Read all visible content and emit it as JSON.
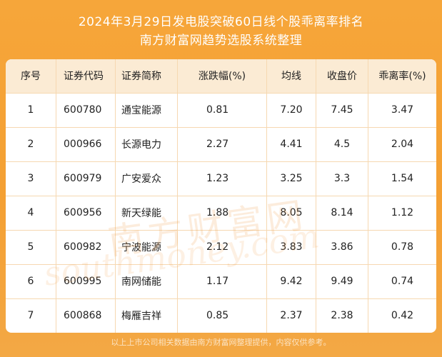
{
  "header": {
    "title_line1": "2024年3月29日发电股突破60日线个股乖离率排名",
    "title_line2": "南方财富网趋势选股系统整理"
  },
  "table": {
    "columns": [
      "序号",
      "证券代码",
      "证券简称",
      "涨跌幅(%)",
      "均线",
      "收盘价",
      "乖离率(%)"
    ],
    "rows": [
      [
        "1",
        "600780",
        "通宝能源",
        "0.81",
        "7.20",
        "7.45",
        "3.47"
      ],
      [
        "2",
        "000966",
        "长源电力",
        "2.27",
        "4.41",
        "4.5",
        "2.04"
      ],
      [
        "3",
        "600979",
        "广安爱众",
        "1.23",
        "3.25",
        "3.3",
        "1.54"
      ],
      [
        "4",
        "600956",
        "新天绿能",
        "1.88",
        "8.05",
        "8.14",
        "1.12"
      ],
      [
        "5",
        "600982",
        "宁波能源",
        "2.12",
        "3.83",
        "3.86",
        "0.78"
      ],
      [
        "6",
        "600995",
        "南网储能",
        "1.17",
        "9.42",
        "9.49",
        "0.74"
      ],
      [
        "7",
        "600868",
        "梅雁吉祥",
        "0.85",
        "2.37",
        "2.38",
        "0.42"
      ]
    ]
  },
  "watermark": {
    "text_cn": "南方财富网",
    "text_en": "southmoney.com"
  },
  "footer": {
    "text": "以上上市公司相关数据由南方财富网整理提供，内容仅供参考。"
  }
}
